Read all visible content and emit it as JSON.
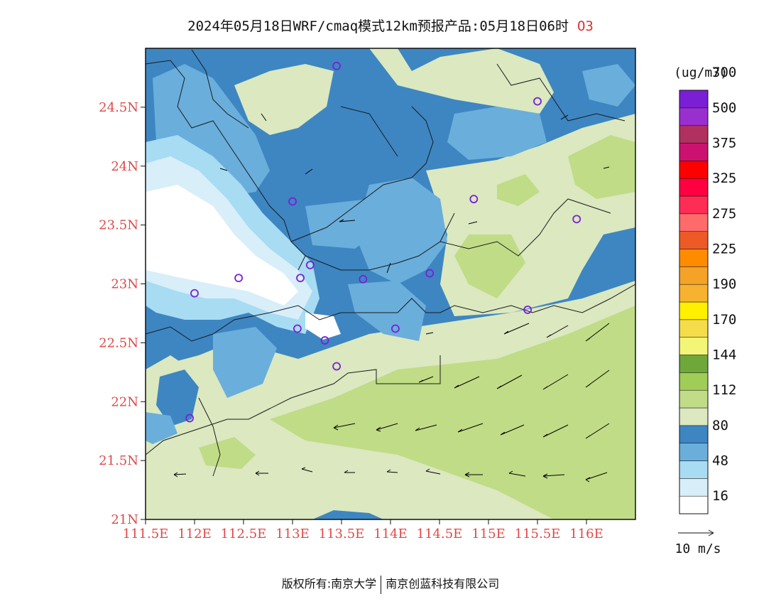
{
  "title": {
    "main": "2024年05月18日WRF/cmaq模式12km预报产品:05月18日06时",
    "species": "O3"
  },
  "map": {
    "lat_ticks": [
      "21N",
      "21.5N",
      "22N",
      "22.5N",
      "23N",
      "23.5N",
      "24N",
      "24.5N"
    ],
    "lon_ticks": [
      "111.5E",
      "112E",
      "112.5E",
      "113E",
      "113.5E",
      "114E",
      "114.5E",
      "115E",
      "115.5E",
      "116E"
    ],
    "stations": [
      {
        "lon": 113.45,
        "lat": 24.85
      },
      {
        "lon": 115.5,
        "lat": 24.55
      },
      {
        "lon": 113.0,
        "lat": 23.7
      },
      {
        "lon": 114.85,
        "lat": 23.72
      },
      {
        "lon": 115.9,
        "lat": 23.55
      },
      {
        "lon": 112.45,
        "lat": 23.05
      },
      {
        "lon": 112.0,
        "lat": 22.92
      },
      {
        "lon": 113.08,
        "lat": 23.05
      },
      {
        "lon": 113.18,
        "lat": 23.16
      },
      {
        "lon": 113.72,
        "lat": 23.04
      },
      {
        "lon": 114.4,
        "lat": 23.09
      },
      {
        "lon": 115.4,
        "lat": 22.78
      },
      {
        "lon": 113.05,
        "lat": 22.62
      },
      {
        "lon": 113.33,
        "lat": 22.52
      },
      {
        "lon": 114.05,
        "lat": 22.62
      },
      {
        "lon": 113.45,
        "lat": 22.3
      },
      {
        "lon": 111.95,
        "lat": 21.86
      }
    ],
    "station_color": "#7a1fd6"
  },
  "colorbar": {
    "unit": "(ug/m3)",
    "colors": [
      "#ffffff",
      "#d8eef9",
      "#a7dcf3",
      "#6aaedc",
      "#3d86c2",
      "#dbe8c0",
      "#c0dc86",
      "#9fcd57",
      "#6fa83a",
      "#f3f576",
      "#f5dc4b",
      "#fff000",
      "#f7b22f",
      "#f5a228",
      "#ff8c00",
      "#ee5a26",
      "#ff6a6a",
      "#ff2d55",
      "#ff0040",
      "#ff0000",
      "#cc1170",
      "#b03060",
      "#9a2fd0",
      "#7a1fd6"
    ],
    "labels": [
      "16",
      "48",
      "80",
      "112",
      "144",
      "170",
      "190",
      "225",
      "275",
      "325",
      "375",
      "500",
      "700"
    ],
    "wind_ref": "10 m/s"
  },
  "copyright": {
    "left": "版权所有:南京大学",
    "right": "南京创蓝科技有限公司"
  }
}
